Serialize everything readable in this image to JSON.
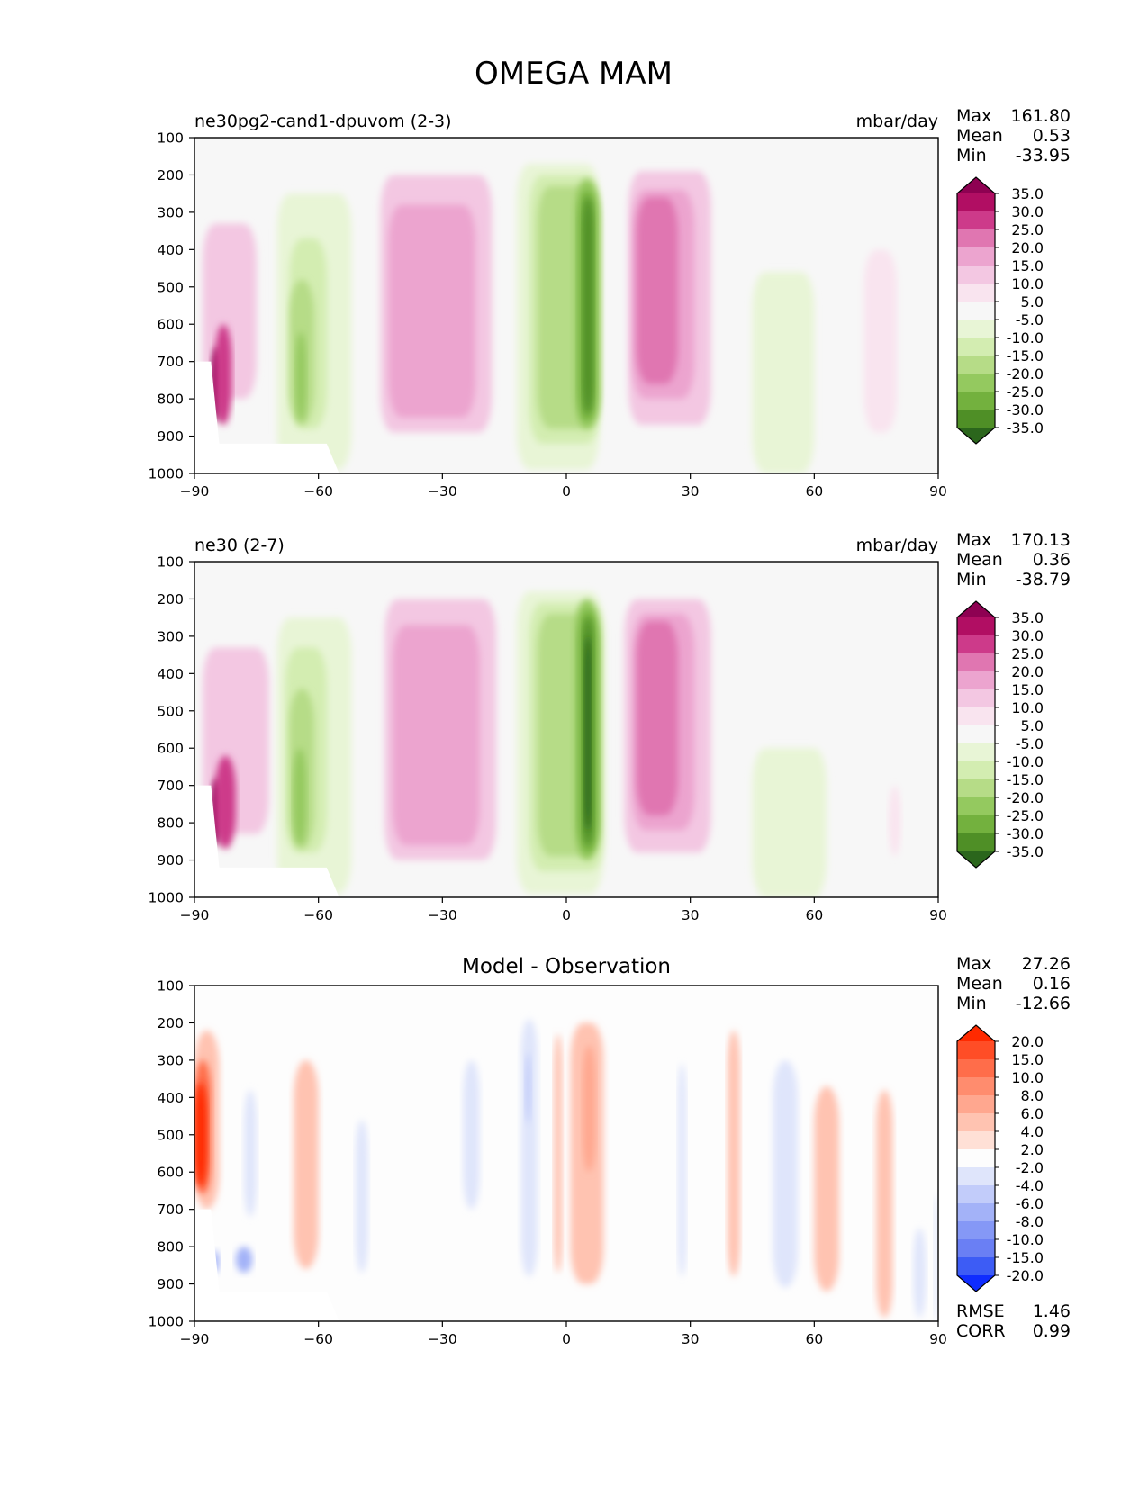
{
  "figure_title": "OMEGA MAM",
  "chart_data": [
    {
      "type": "contour",
      "left_title": "ne30pg2-cand1-dpuvom (2-3)",
      "center_title": "",
      "units": "mbar/day",
      "xlim": [
        -90,
        90
      ],
      "ylim": [
        1000,
        100
      ],
      "xticks": [
        "−90",
        "−60",
        "−30",
        "0",
        "30",
        "60",
        "90"
      ],
      "yticks": [
        "100",
        "200",
        "300",
        "400",
        "500",
        "600",
        "700",
        "800",
        "900",
        "1000"
      ],
      "stats": {
        "labels": [
          "Max",
          "Mean",
          "Min"
        ],
        "values": [
          "161.80",
          "0.53",
          "-33.95"
        ]
      },
      "colorbar": {
        "levels": [
          "35.0",
          "30.0",
          "25.0",
          "20.0",
          "15.0",
          "10.0",
          "5.0",
          "-5.0",
          "-10.0",
          "-15.0",
          "-20.0",
          "-25.0",
          "-30.0",
          "-35.0"
        ],
        "colors": [
          "#8e0152",
          "#b10e63",
          "#cd3a8a",
          "#e076b1",
          "#eca4cf",
          "#f3c7e2",
          "#f9e4ef",
          "#f7f7f7",
          "#e8f5d6",
          "#d3edb1",
          "#b6dc87",
          "#94c95f",
          "#73b13e",
          "#4f8f26",
          "#2b661c"
        ]
      },
      "features": [
        {
          "level": 10,
          "lat": [
            -45,
            -18
          ],
          "p": [
            200,
            890
          ]
        },
        {
          "level": 15,
          "lat": [
            -43,
            -22
          ],
          "p": [
            280,
            850
          ]
        },
        {
          "level": 10,
          "lat": [
            15,
            35
          ],
          "p": [
            190,
            870
          ]
        },
        {
          "level": 15,
          "lat": [
            16,
            31
          ],
          "p": [
            240,
            800
          ]
        },
        {
          "level": 20,
          "lat": [
            17,
            27
          ],
          "p": [
            260,
            760
          ]
        },
        {
          "level": 10,
          "lat": [
            -88,
            -75
          ],
          "p": [
            330,
            800
          ]
        },
        {
          "level": -5,
          "lat": [
            -12,
            8
          ],
          "p": [
            170,
            990
          ]
        },
        {
          "level": -10,
          "lat": [
            -9,
            8
          ],
          "p": [
            200,
            920
          ]
        },
        {
          "level": -15,
          "lat": [
            -7,
            8
          ],
          "p": [
            230,
            880
          ]
        },
        {
          "level": -20,
          "lat": [
            2,
            8
          ],
          "p": [
            210,
            880
          ]
        },
        {
          "level": -25,
          "lat": [
            3,
            7
          ],
          "p": [
            240,
            860
          ]
        },
        {
          "level": -30,
          "lat": [
            4,
            6.5
          ],
          "p": [
            260,
            840
          ]
        },
        {
          "level": -5,
          "lat": [
            -70,
            -52
          ],
          "p": [
            250,
            990
          ]
        },
        {
          "level": -10,
          "lat": [
            -67,
            -58
          ],
          "p": [
            370,
            880
          ]
        },
        {
          "level": -15,
          "lat": [
            -67,
            -61
          ],
          "p": [
            480,
            870
          ]
        },
        {
          "level": -20,
          "lat": [
            -65.5,
            -63
          ],
          "p": [
            620,
            860
          ]
        },
        {
          "level": -5,
          "lat": [
            45,
            60
          ],
          "p": [
            460,
            1000
          ]
        },
        {
          "level": 5,
          "lat": [
            72,
            80
          ],
          "p": [
            400,
            890
          ]
        },
        {
          "level": 35,
          "lat": [
            -86,
            -83
          ],
          "p": [
            660,
            860
          ]
        },
        {
          "level": 25,
          "lat": [
            -85,
            -81
          ],
          "p": [
            600,
            870
          ]
        }
      ]
    },
    {
      "type": "contour",
      "left_title": "ne30 (2-7)",
      "center_title": "",
      "units": "mbar/day",
      "xlim": [
        -90,
        90
      ],
      "ylim": [
        1000,
        100
      ],
      "xticks": [
        "−90",
        "−60",
        "−30",
        "0",
        "30",
        "60",
        "90"
      ],
      "yticks": [
        "100",
        "200",
        "300",
        "400",
        "500",
        "600",
        "700",
        "800",
        "900",
        "1000"
      ],
      "stats": {
        "labels": [
          "Max",
          "Mean",
          "Min"
        ],
        "values": [
          "170.13",
          "0.36",
          "-38.79"
        ]
      },
      "colorbar": {
        "levels": [
          "35.0",
          "30.0",
          "25.0",
          "20.0",
          "15.0",
          "10.0",
          "5.0",
          "-5.0",
          "-10.0",
          "-15.0",
          "-20.0",
          "-25.0",
          "-30.0",
          "-35.0"
        ],
        "colors": [
          "#8e0152",
          "#b10e63",
          "#cd3a8a",
          "#e076b1",
          "#eca4cf",
          "#f3c7e2",
          "#f9e4ef",
          "#f7f7f7",
          "#e8f5d6",
          "#d3edb1",
          "#b6dc87",
          "#94c95f",
          "#73b13e",
          "#4f8f26",
          "#2b661c"
        ]
      },
      "features": [
        {
          "level": 10,
          "lat": [
            -44,
            -17
          ],
          "p": [
            200,
            900
          ]
        },
        {
          "level": 15,
          "lat": [
            -42,
            -21
          ],
          "p": [
            270,
            860
          ]
        },
        {
          "level": 10,
          "lat": [
            14,
            35
          ],
          "p": [
            200,
            880
          ]
        },
        {
          "level": 15,
          "lat": [
            16,
            31
          ],
          "p": [
            240,
            820
          ]
        },
        {
          "level": 20,
          "lat": [
            17,
            27
          ],
          "p": [
            260,
            780
          ]
        },
        {
          "level": 10,
          "lat": [
            -88,
            -72
          ],
          "p": [
            330,
            830
          ]
        },
        {
          "level": -5,
          "lat": [
            -12,
            9
          ],
          "p": [
            180,
            990
          ]
        },
        {
          "level": -10,
          "lat": [
            -9,
            9
          ],
          "p": [
            210,
            930
          ]
        },
        {
          "level": -15,
          "lat": [
            -7,
            8
          ],
          "p": [
            240,
            890
          ]
        },
        {
          "level": -20,
          "lat": [
            2,
            8
          ],
          "p": [
            200,
            900
          ]
        },
        {
          "level": -25,
          "lat": [
            3,
            7.5
          ],
          "p": [
            230,
            880
          ]
        },
        {
          "level": -30,
          "lat": [
            4,
            6.5
          ],
          "p": [
            250,
            860
          ]
        },
        {
          "level": -35,
          "lat": [
            4.5,
            6
          ],
          "p": [
            300,
            820
          ]
        },
        {
          "level": -5,
          "lat": [
            -70,
            -52
          ],
          "p": [
            250,
            990
          ]
        },
        {
          "level": -10,
          "lat": [
            -68,
            -58
          ],
          "p": [
            330,
            880
          ]
        },
        {
          "level": -15,
          "lat": [
            -67,
            -61
          ],
          "p": [
            440,
            870
          ]
        },
        {
          "level": -20,
          "lat": [
            -66,
            -63
          ],
          "p": [
            600,
            860
          ]
        },
        {
          "level": -5,
          "lat": [
            45,
            63
          ],
          "p": [
            600,
            1000
          ]
        },
        {
          "level": 5,
          "lat": [
            78,
            81
          ],
          "p": [
            700,
            890
          ]
        },
        {
          "level": 35,
          "lat": [
            -86,
            -83
          ],
          "p": [
            680,
            860
          ]
        },
        {
          "level": 25,
          "lat": [
            -85,
            -80
          ],
          "p": [
            620,
            870
          ]
        }
      ]
    },
    {
      "type": "contour",
      "left_title": "",
      "center_title": "Model - Observation",
      "units": "",
      "xlim": [
        -90,
        90
      ],
      "ylim": [
        1000,
        100
      ],
      "xticks": [
        "−90",
        "−60",
        "−30",
        "0",
        "30",
        "60",
        "90"
      ],
      "yticks": [
        "100",
        "200",
        "300",
        "400",
        "500",
        "600",
        "700",
        "800",
        "900",
        "1000"
      ],
      "stats": {
        "labels": [
          "Max",
          "Mean",
          "Min"
        ],
        "values": [
          "27.26",
          "0.16",
          "-12.66"
        ]
      },
      "metrics": {
        "labels": [
          "RMSE",
          "CORR"
        ],
        "values": [
          "1.46",
          "0.99"
        ]
      },
      "colorbar": {
        "levels": [
          "20.0",
          "15.0",
          "10.0",
          "8.0",
          "6.0",
          "4.0",
          "2.0",
          "-2.0",
          "-4.0",
          "-6.0",
          "-8.0",
          "-10.0",
          "-15.0",
          "-20.0"
        ],
        "colors": [
          "#ff2a00",
          "#ff4d26",
          "#ff6d4a",
          "#ff8c6e",
          "#ffa78f",
          "#ffc3b1",
          "#ffe0d6",
          "#fdfdfd",
          "#dfe5fb",
          "#c2ccfa",
          "#a3b2f8",
          "#8598f6",
          "#6a7ff4",
          "#3d5cf5",
          "#0f2cff"
        ]
      },
      "features": [
        {
          "level": 4,
          "lat": [
            -90,
            -84
          ],
          "p": [
            220,
            700
          ]
        },
        {
          "level": 10,
          "lat": [
            -90,
            -86
          ],
          "p": [
            300,
            660
          ]
        },
        {
          "level": 20,
          "lat": [
            -90,
            -87
          ],
          "p": [
            360,
            640
          ]
        },
        {
          "level": 4,
          "lat": [
            -66,
            -60
          ],
          "p": [
            300,
            860
          ]
        },
        {
          "level": 4,
          "lat": [
            1,
            9
          ],
          "p": [
            200,
            900
          ]
        },
        {
          "level": 6,
          "lat": [
            4,
            7
          ],
          "p": [
            260,
            600
          ]
        },
        {
          "level": 4,
          "lat": [
            -3,
            -1
          ],
          "p": [
            230,
            870
          ]
        },
        {
          "level": -2,
          "lat": [
            -11,
            -7
          ],
          "p": [
            190,
            880
          ]
        },
        {
          "level": -4,
          "lat": [
            -10,
            -8.5
          ],
          "p": [
            280,
            470
          ]
        },
        {
          "level": -2,
          "lat": [
            -25,
            -21
          ],
          "p": [
            300,
            700
          ]
        },
        {
          "level": -2,
          "lat": [
            -51,
            -48
          ],
          "p": [
            460,
            870
          ]
        },
        {
          "level": -2,
          "lat": [
            -78,
            -75
          ],
          "p": [
            380,
            720
          ]
        },
        {
          "level": -6,
          "lat": [
            -80,
            -76
          ],
          "p": [
            800,
            870
          ]
        },
        {
          "level": -6,
          "lat": [
            -86,
            -84
          ],
          "p": [
            810,
            870
          ]
        },
        {
          "level": -2,
          "lat": [
            27,
            29
          ],
          "p": [
            310,
            880
          ]
        },
        {
          "level": 4,
          "lat": [
            39,
            42
          ],
          "p": [
            220,
            880
          ]
        },
        {
          "level": -2,
          "lat": [
            50,
            56
          ],
          "p": [
            300,
            910
          ]
        },
        {
          "level": 4,
          "lat": [
            60,
            66
          ],
          "p": [
            370,
            920
          ]
        },
        {
          "level": 4,
          "lat": [
            75,
            79
          ],
          "p": [
            380,
            990
          ]
        },
        {
          "level": -2,
          "lat": [
            84,
            87
          ],
          "p": [
            750,
            990
          ]
        },
        {
          "level": -2,
          "lat": [
            89,
            90
          ],
          "p": [
            660,
            1000
          ]
        }
      ]
    }
  ]
}
